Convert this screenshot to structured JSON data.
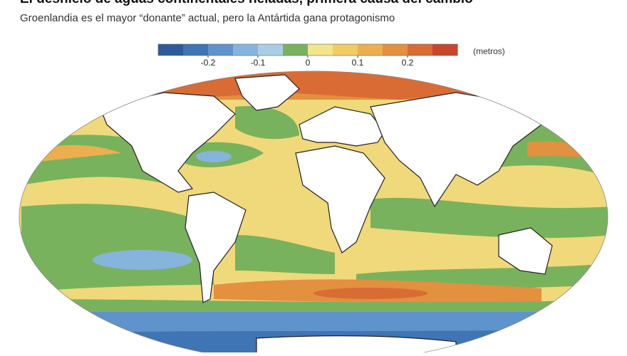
{
  "title": "El deshielo de aguas continentales heladas, primera causa del cambio",
  "subtitle": "Groenlandia es el mayor “donante” actual, pero la Antártida gana protagonismo",
  "colorbar": {
    "unit": "(metros)",
    "lim": [
      -0.3,
      0.3
    ],
    "ticks": [
      -0.2,
      -0.1,
      0,
      0.1,
      0.2
    ],
    "colors": [
      "#2e5a9c",
      "#3f74b5",
      "#5e93cc",
      "#86b4dc",
      "#aacde6",
      "#79b25c",
      "#f3e48e",
      "#f0cc62",
      "#eab04f",
      "#e3903f",
      "#d96c35",
      "#c9452c"
    ]
  }
}
